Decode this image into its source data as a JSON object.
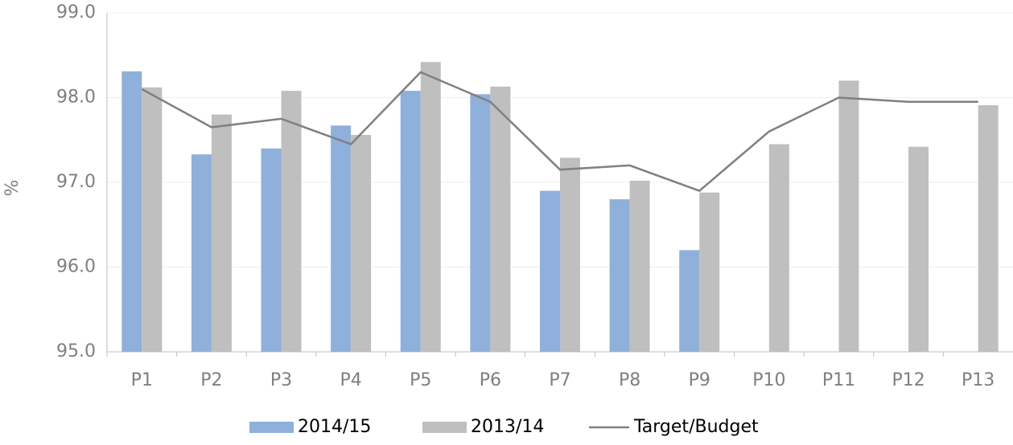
{
  "chart_data": {
    "type": "bar",
    "y_label": "%",
    "categories": [
      "P1",
      "P2",
      "P3",
      "P4",
      "P5",
      "P6",
      "P7",
      "P8",
      "P9",
      "P10",
      "P11",
      "P12",
      "P13"
    ],
    "series": [
      {
        "name": "2014/15",
        "type": "bar",
        "color": "#8eb0db",
        "values": [
          98.31,
          97.33,
          97.4,
          97.67,
          98.08,
          98.04,
          96.9,
          96.8,
          96.2,
          null,
          null,
          null,
          null
        ]
      },
      {
        "name": "2013/14",
        "type": "bar",
        "color": "#bfbfbf",
        "values": [
          98.12,
          97.8,
          98.08,
          97.56,
          98.42,
          98.13,
          97.29,
          97.02,
          96.88,
          97.45,
          98.2,
          97.42,
          97.91
        ]
      },
      {
        "name": "Target/Budget",
        "type": "line",
        "color": "#808080",
        "values": [
          98.1,
          97.65,
          97.75,
          97.45,
          98.3,
          97.95,
          97.15,
          97.2,
          96.9,
          97.6,
          98.0,
          97.95,
          97.95
        ]
      }
    ],
    "ylim": [
      95,
      99
    ],
    "yticks": [
      {
        "value": 95,
        "label": "95.0"
      },
      {
        "value": 96,
        "label": "96.0"
      },
      {
        "value": 97,
        "label": "97.0"
      },
      {
        "value": 98,
        "label": "98.0"
      },
      {
        "value": 99,
        "label": "99.0"
      }
    ],
    "grid": true,
    "legend": "bottom"
  }
}
